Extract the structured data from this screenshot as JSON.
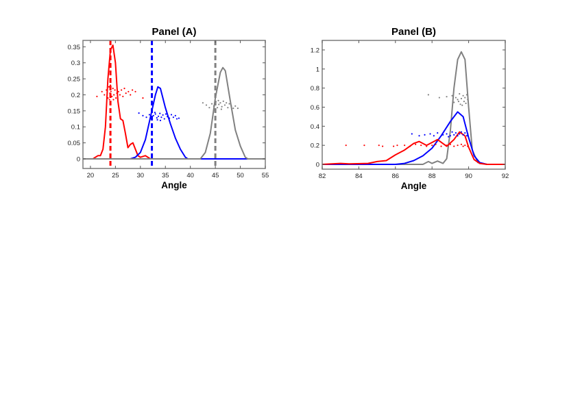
{
  "chart_data": [
    {
      "type": "line",
      "title": "Panel (A)",
      "xlabel": "Angle",
      "ylabel": "",
      "xlim": [
        18.5,
        55
      ],
      "ylim": [
        -0.03,
        0.37
      ],
      "xticks": [
        20,
        25,
        30,
        35,
        40,
        45,
        50,
        55
      ],
      "yticks": [
        0,
        0.05,
        0.1,
        0.15,
        0.2,
        0.25,
        0.3,
        0.35
      ],
      "grid": false,
      "series": [
        {
          "color": "#ff0000",
          "style": "solid",
          "x": [
            18.5,
            20.5,
            21,
            21.5,
            22,
            22.5,
            23,
            23.5,
            24,
            24.5,
            25,
            25.5,
            26,
            26.5,
            27,
            27.5,
            28,
            28.5,
            29,
            29.5,
            30,
            31,
            31.5,
            32,
            55
          ],
          "y": [
            0,
            0,
            0.005,
            0.01,
            0.01,
            0.03,
            0.1,
            0.25,
            0.34,
            0.355,
            0.3,
            0.18,
            0.125,
            0.12,
            0.08,
            0.035,
            0.045,
            0.05,
            0.03,
            0.01,
            0.005,
            0.01,
            0.005,
            0,
            0
          ]
        },
        {
          "color": "#0000ff",
          "style": "solid",
          "x": [
            18.5,
            28,
            29,
            30,
            31,
            32,
            33,
            33.5,
            34,
            35,
            36,
            37,
            38,
            39,
            39.5,
            55
          ],
          "y": [
            0,
            0,
            0.005,
            0.02,
            0.06,
            0.13,
            0.2,
            0.225,
            0.22,
            0.16,
            0.11,
            0.065,
            0.03,
            0.005,
            0,
            0
          ]
        },
        {
          "color": "#808080",
          "style": "solid",
          "x": [
            18.5,
            42,
            43,
            44,
            45,
            46,
            46.5,
            47,
            48,
            49,
            50,
            51,
            51.5,
            55
          ],
          "y": [
            0,
            0,
            0.02,
            0.08,
            0.19,
            0.27,
            0.285,
            0.275,
            0.18,
            0.09,
            0.04,
            0.005,
            0,
            0
          ]
        }
      ],
      "vlines": [
        {
          "x": 24,
          "color": "#ff0000",
          "style": "dashed"
        },
        {
          "x": 32.3,
          "color": "#0000ff",
          "style": "dashed"
        },
        {
          "x": 45,
          "color": "#808080",
          "style": "dashed"
        }
      ],
      "scatter": [
        {
          "color": "#ff0000",
          "points": [
            [
              21.3,
              0.195
            ],
            [
              22.3,
              0.21
            ],
            [
              22.8,
              0.2
            ],
            [
              23.2,
              0.215
            ],
            [
              23.5,
              0.19
            ],
            [
              23.7,
              0.225
            ],
            [
              23.9,
              0.205
            ],
            [
              24.1,
              0.21
            ],
            [
              24.3,
              0.195
            ],
            [
              24.5,
              0.22
            ],
            [
              24.7,
              0.2
            ],
            [
              24.9,
              0.215
            ],
            [
              25.1,
              0.19
            ],
            [
              25.3,
              0.205
            ],
            [
              25.6,
              0.21
            ],
            [
              25.9,
              0.2
            ],
            [
              26.2,
              0.215
            ],
            [
              26.5,
              0.195
            ],
            [
              26.8,
              0.22
            ],
            [
              27.1,
              0.205
            ],
            [
              27.6,
              0.21
            ],
            [
              28.0,
              0.2
            ],
            [
              28.4,
              0.215
            ],
            [
              29.0,
              0.21
            ],
            [
              30.5,
              0.19
            ],
            [
              24.0,
              0.23
            ],
            [
              23.8,
              0.185
            ],
            [
              24.6,
              0.185
            ]
          ]
        },
        {
          "color": "#0000ff",
          "points": [
            [
              29.7,
              0.143
            ],
            [
              30.5,
              0.135
            ],
            [
              31.2,
              0.13
            ],
            [
              31.8,
              0.138
            ],
            [
              32.2,
              0.127
            ],
            [
              32.6,
              0.135
            ],
            [
              33.0,
              0.14
            ],
            [
              33.3,
              0.128
            ],
            [
              33.6,
              0.133
            ],
            [
              33.9,
              0.142
            ],
            [
              34.2,
              0.13
            ],
            [
              34.5,
              0.137
            ],
            [
              34.8,
              0.125
            ],
            [
              35.1,
              0.14
            ],
            [
              35.4,
              0.132
            ],
            [
              35.8,
              0.127
            ],
            [
              36.2,
              0.138
            ],
            [
              36.6,
              0.13
            ],
            [
              37.0,
              0.135
            ],
            [
              37.3,
              0.125
            ],
            [
              37.7,
              0.127
            ],
            [
              33.4,
              0.122
            ],
            [
              32.9,
              0.145
            ],
            [
              34.0,
              0.12
            ]
          ]
        },
        {
          "color": "#808080",
          "points": [
            [
              42.5,
              0.175
            ],
            [
              43.2,
              0.168
            ],
            [
              43.8,
              0.16
            ],
            [
              44.3,
              0.172
            ],
            [
              44.7,
              0.165
            ],
            [
              45.1,
              0.178
            ],
            [
              45.4,
              0.16
            ],
            [
              45.7,
              0.17
            ],
            [
              46.0,
              0.175
            ],
            [
              46.3,
              0.163
            ],
            [
              46.6,
              0.18
            ],
            [
              46.9,
              0.168
            ],
            [
              47.2,
              0.175
            ],
            [
              47.5,
              0.16
            ],
            [
              47.8,
              0.172
            ],
            [
              48.2,
              0.165
            ],
            [
              48.6,
              0.158
            ],
            [
              49.0,
              0.165
            ],
            [
              49.5,
              0.158
            ],
            [
              46.2,
              0.155
            ],
            [
              45.6,
              0.182
            ]
          ]
        }
      ]
    },
    {
      "type": "line",
      "title": "Panel (B)",
      "xlabel": "Angle",
      "ylabel": "",
      "xlim": [
        82,
        92
      ],
      "ylim": [
        -0.05,
        1.3
      ],
      "xticks": [
        82,
        84,
        86,
        88,
        90,
        92
      ],
      "yticks": [
        0,
        0.2,
        0.4,
        0.6,
        0.8,
        1,
        1.2
      ],
      "grid": false,
      "series": [
        {
          "color": "#808080",
          "style": "solid",
          "x": [
            82,
            87.5,
            87.8,
            88,
            88.3,
            88.6,
            88.8,
            89,
            89.2,
            89.4,
            89.6,
            89.8,
            90,
            90.2,
            90.5,
            91,
            92
          ],
          "y": [
            0,
            0,
            0.03,
            0.01,
            0.035,
            0.01,
            0.06,
            0.35,
            0.8,
            1.1,
            1.18,
            1.1,
            0.6,
            0.15,
            0.02,
            0,
            0
          ]
        },
        {
          "color": "#0000ff",
          "style": "solid",
          "x": [
            82,
            86,
            86.5,
            87,
            87.5,
            88,
            88.5,
            89,
            89.4,
            89.7,
            90,
            90.3,
            90.6,
            91,
            92
          ],
          "y": [
            0,
            0,
            0.01,
            0.04,
            0.09,
            0.17,
            0.3,
            0.45,
            0.55,
            0.5,
            0.28,
            0.09,
            0.02,
            0,
            0
          ]
        },
        {
          "color": "#ff0000",
          "style": "solid",
          "x": [
            82,
            83,
            83.5,
            84.5,
            85,
            85.5,
            86,
            86.5,
            87,
            87.3,
            87.7,
            88.3,
            88.8,
            89.2,
            89.5,
            89.8,
            90,
            90.3,
            90.6,
            91,
            92
          ],
          "y": [
            0,
            0.01,
            0.005,
            0.01,
            0.03,
            0.04,
            0.1,
            0.15,
            0.22,
            0.24,
            0.2,
            0.26,
            0.19,
            0.26,
            0.34,
            0.3,
            0.18,
            0.05,
            0.01,
            0,
            0
          ]
        }
      ],
      "vlines": [],
      "scatter": [
        {
          "color": "#808080",
          "points": [
            [
              87.8,
              0.73
            ],
            [
              88.4,
              0.7
            ],
            [
              88.8,
              0.71
            ],
            [
              89.1,
              0.72
            ],
            [
              89.2,
              0.65
            ],
            [
              89.3,
              0.7
            ],
            [
              89.4,
              0.68
            ],
            [
              89.5,
              0.74
            ],
            [
              89.55,
              0.63
            ],
            [
              89.6,
              0.69
            ],
            [
              89.7,
              0.72
            ],
            [
              89.75,
              0.66
            ],
            [
              89.8,
              0.7
            ],
            [
              89.85,
              0.64
            ],
            [
              89.9,
              0.73
            ],
            [
              89.95,
              0.68
            ],
            [
              89.45,
              0.66
            ],
            [
              89.65,
              0.62
            ]
          ]
        },
        {
          "color": "#0000ff",
          "points": [
            [
              86.9,
              0.32
            ],
            [
              87.3,
              0.3
            ],
            [
              87.6,
              0.31
            ],
            [
              87.9,
              0.32
            ],
            [
              88.1,
              0.3
            ],
            [
              88.3,
              0.33
            ],
            [
              88.6,
              0.31
            ],
            [
              88.8,
              0.32
            ],
            [
              89.0,
              0.3
            ],
            [
              89.1,
              0.34
            ],
            [
              89.2,
              0.31
            ],
            [
              89.3,
              0.33
            ],
            [
              89.4,
              0.3
            ],
            [
              89.5,
              0.32
            ],
            [
              89.6,
              0.34
            ],
            [
              89.7,
              0.31
            ],
            [
              89.8,
              0.33
            ],
            [
              89.9,
              0.3
            ],
            [
              89.95,
              0.32
            ],
            [
              88.9,
              0.29
            ]
          ]
        },
        {
          "color": "#ff0000",
          "points": [
            [
              83.3,
              0.2
            ],
            [
              84.3,
              0.2
            ],
            [
              85.1,
              0.2
            ],
            [
              85.3,
              0.19
            ],
            [
              85.9,
              0.19
            ],
            [
              86.1,
              0.2
            ],
            [
              86.5,
              0.2
            ],
            [
              86.8,
              0.19
            ],
            [
              87.1,
              0.21
            ],
            [
              87.4,
              0.2
            ],
            [
              87.7,
              0.19
            ],
            [
              88.0,
              0.2
            ],
            [
              88.2,
              0.21
            ],
            [
              88.5,
              0.19
            ],
            [
              88.8,
              0.2
            ],
            [
              89.0,
              0.21
            ],
            [
              89.2,
              0.19
            ],
            [
              89.4,
              0.2
            ],
            [
              89.6,
              0.21
            ],
            [
              89.7,
              0.19
            ],
            [
              89.8,
              0.2
            ],
            [
              89.95,
              0.19
            ]
          ]
        }
      ]
    }
  ]
}
